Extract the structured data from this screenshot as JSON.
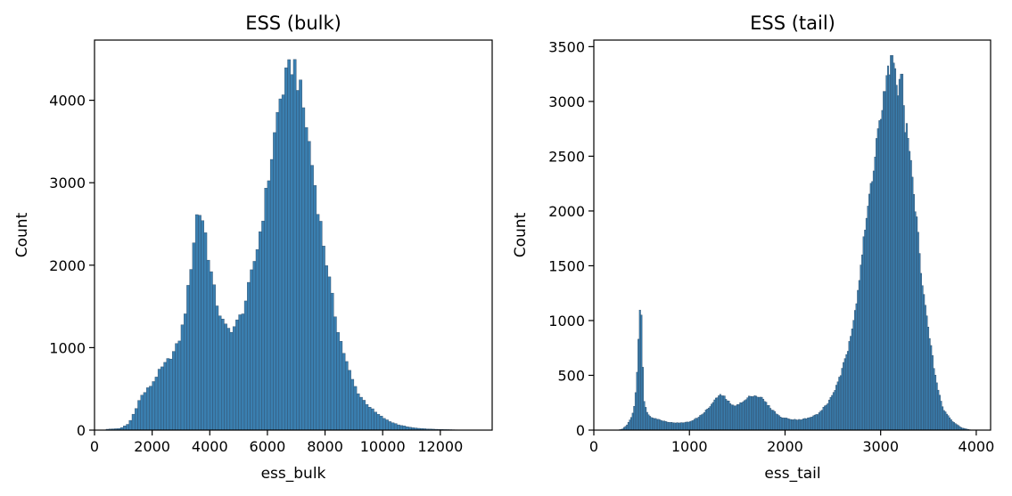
{
  "chart_data": [
    {
      "type": "histogram",
      "title": "ESS (bulk)",
      "xlabel": "ess_bulk",
      "ylabel": "Count",
      "xlim": [
        0,
        13800
      ],
      "ylim": [
        0,
        4730
      ],
      "xticks": [
        0,
        2000,
        4000,
        6000,
        8000,
        10000,
        12000
      ],
      "yticks": [
        0,
        1000,
        2000,
        3000,
        4000
      ],
      "grid": false,
      "bar_color": "#3a7fb0",
      "edge_color": "#2e4a66",
      "bin_width": 100,
      "density_profile": [
        [
          400,
          10
        ],
        [
          900,
          20
        ],
        [
          1200,
          80
        ],
        [
          1400,
          230
        ],
        [
          1600,
          400
        ],
        [
          1800,
          480
        ],
        [
          2000,
          560
        ],
        [
          2200,
          690
        ],
        [
          2500,
          820
        ],
        [
          2800,
          970
        ],
        [
          3000,
          1150
        ],
        [
          3200,
          1550
        ],
        [
          3400,
          2150
        ],
        [
          3550,
          2600
        ],
        [
          3700,
          2650
        ],
        [
          3850,
          2380
        ],
        [
          4000,
          2000
        ],
        [
          4200,
          1600
        ],
        [
          4400,
          1350
        ],
        [
          4600,
          1220
        ],
        [
          4800,
          1230
        ],
        [
          5000,
          1330
        ],
        [
          5200,
          1500
        ],
        [
          5400,
          1800
        ],
        [
          5700,
          2300
        ],
        [
          6000,
          2950
        ],
        [
          6200,
          3450
        ],
        [
          6400,
          3950
        ],
        [
          6600,
          4200
        ],
        [
          6800,
          4380
        ],
        [
          6900,
          4500
        ],
        [
          7000,
          4350
        ],
        [
          7200,
          4000
        ],
        [
          7400,
          3600
        ],
        [
          7600,
          3100
        ],
        [
          7800,
          2600
        ],
        [
          8000,
          2150
        ],
        [
          8200,
          1700
        ],
        [
          8400,
          1300
        ],
        [
          8600,
          1000
        ],
        [
          8800,
          760
        ],
        [
          9000,
          560
        ],
        [
          9200,
          420
        ],
        [
          9500,
          300
        ],
        [
          9800,
          200
        ],
        [
          10200,
          110
        ],
        [
          10600,
          60
        ],
        [
          11000,
          30
        ],
        [
          11500,
          15
        ],
        [
          12000,
          8
        ],
        [
          12500,
          4
        ],
        [
          13000,
          0
        ]
      ]
    },
    {
      "type": "histogram",
      "title": "ESS (tail)",
      "xlabel": "ess_tail",
      "ylabel": "Count",
      "xlim": [
        0,
        4150
      ],
      "ylim": [
        0,
        3560
      ],
      "xticks": [
        0,
        1000,
        2000,
        3000,
        4000
      ],
      "yticks": [
        0,
        500,
        1000,
        1500,
        2000,
        2500,
        3000,
        3500
      ],
      "grid": false,
      "bar_color": "#3a7fb0",
      "edge_color": "#2e4a66",
      "bin_width": 15,
      "density_profile": [
        [
          250,
          0
        ],
        [
          300,
          10
        ],
        [
          350,
          50
        ],
        [
          400,
          130
        ],
        [
          430,
          250
        ],
        [
          450,
          500
        ],
        [
          470,
          900
        ],
        [
          485,
          1130
        ],
        [
          500,
          1000
        ],
        [
          520,
          300
        ],
        [
          560,
          150
        ],
        [
          600,
          120
        ],
        [
          700,
          90
        ],
        [
          800,
          70
        ],
        [
          900,
          65
        ],
        [
          1000,
          75
        ],
        [
          1100,
          120
        ],
        [
          1200,
          200
        ],
        [
          1300,
          310
        ],
        [
          1350,
          320
        ],
        [
          1450,
          220
        ],
        [
          1550,
          250
        ],
        [
          1650,
          320
        ],
        [
          1750,
          300
        ],
        [
          1850,
          200
        ],
        [
          1950,
          120
        ],
        [
          2050,
          100
        ],
        [
          2150,
          95
        ],
        [
          2250,
          110
        ],
        [
          2350,
          150
        ],
        [
          2450,
          250
        ],
        [
          2550,
          420
        ],
        [
          2650,
          700
        ],
        [
          2750,
          1200
        ],
        [
          2850,
          1900
        ],
        [
          2950,
          2600
        ],
        [
          3050,
          3100
        ],
        [
          3120,
          3350
        ],
        [
          3200,
          3100
        ],
        [
          3280,
          2700
        ],
        [
          3350,
          2150
        ],
        [
          3420,
          1500
        ],
        [
          3500,
          900
        ],
        [
          3580,
          450
        ],
        [
          3650,
          200
        ],
        [
          3750,
          80
        ],
        [
          3850,
          20
        ],
        [
          3950,
          0
        ]
      ],
      "spikes": [
        [
          3120,
          3420
        ],
        [
          3150,
          3300
        ],
        [
          3220,
          3250
        ]
      ]
    }
  ]
}
